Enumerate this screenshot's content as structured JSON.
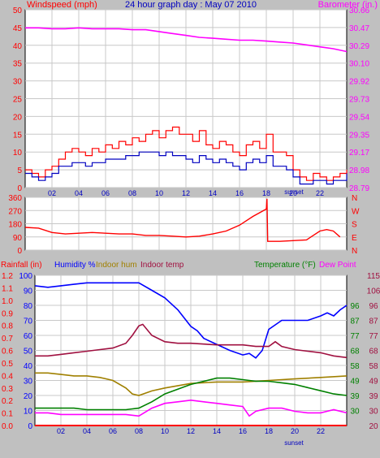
{
  "chart_data": [
    {
      "type": "line",
      "title": "24 hour graph day : May 07 2010",
      "left_axis_label": "Windspeed (mph)",
      "right_axis_label": "Barometer (in.)",
      "x_ticks": [
        "02",
        "04",
        "06",
        "08",
        "10",
        "12",
        "14",
        "16",
        "18",
        "20",
        "22"
      ],
      "x_annotation": "sunset",
      "left_ticks": [
        "0",
        "5",
        "10",
        "15",
        "20",
        "25",
        "30",
        "35",
        "40",
        "45",
        "50"
      ],
      "right_ticks": [
        "28.79",
        "28.98",
        "29.17",
        "29.35",
        "29.54",
        "29.73",
        "29.92",
        "30.10",
        "30.29",
        "30.47",
        "30.66"
      ],
      "ylim": [
        0,
        50
      ],
      "baro_lim": [
        28.79,
        30.66
      ],
      "grid": true,
      "series": [
        {
          "key": "gust",
          "color": "#ff0000",
          "axis": "left",
          "x": [
            0,
            0.5,
            1,
            1.5,
            2,
            2.5,
            3,
            3.5,
            4,
            4.5,
            5,
            5.5,
            6,
            6.5,
            7,
            7.5,
            8,
            8.5,
            9,
            9.5,
            10,
            10.5,
            11,
            11.5,
            12,
            12.5,
            13,
            13.5,
            14,
            14.5,
            15,
            15.5,
            16,
            16.5,
            17,
            17.5,
            18,
            18.5,
            19,
            19.5,
            20,
            20.5,
            21,
            21.5,
            22,
            22.5,
            23,
            23.5,
            24
          ],
          "values": [
            5,
            4,
            3,
            5,
            6,
            8,
            10,
            11,
            10,
            9,
            11,
            10,
            12,
            11,
            13,
            12,
            14,
            13,
            15,
            16,
            14,
            16,
            17,
            15,
            15,
            13,
            16,
            12,
            11,
            13,
            12,
            10,
            9,
            12,
            13,
            11,
            15,
            10,
            10,
            9,
            5,
            3,
            2,
            4,
            3,
            2,
            3,
            4,
            5
          ]
        },
        {
          "key": "wind",
          "color": "#0000c0",
          "axis": "left",
          "x": [
            0,
            0.5,
            1,
            1.5,
            2,
            2.5,
            3,
            3.5,
            4,
            4.5,
            5,
            5.5,
            6,
            6.5,
            7,
            7.5,
            8,
            8.5,
            9,
            9.5,
            10,
            10.5,
            11,
            11.5,
            12,
            12.5,
            13,
            13.5,
            14,
            14.5,
            15,
            15.5,
            16,
            16.5,
            17,
            17.5,
            18,
            18.5,
            19,
            19.5,
            20,
            20.5,
            21,
            21.5,
            22,
            22.5,
            23,
            23.5,
            24
          ],
          "values": [
            4,
            3,
            2,
            3,
            4,
            6,
            6,
            7,
            7,
            6,
            7,
            7,
            8,
            8,
            8,
            9,
            9,
            10,
            10,
            10,
            9,
            10,
            9,
            9,
            8,
            7,
            9,
            8,
            7,
            8,
            7,
            6,
            5,
            7,
            8,
            7,
            9,
            6,
            6,
            5,
            3,
            1,
            1,
            2,
            2,
            1,
            2,
            2,
            4
          ]
        },
        {
          "key": "baro",
          "color": "#ff00ff",
          "axis": "right",
          "x": [
            0,
            1,
            2,
            3,
            4,
            5,
            6,
            7,
            8,
            9,
            10,
            11,
            12,
            13,
            14,
            15,
            16,
            17,
            18,
            19,
            20,
            21,
            22,
            23,
            24
          ],
          "values": [
            30.47,
            30.47,
            30.46,
            30.46,
            30.47,
            30.46,
            30.46,
            30.46,
            30.45,
            30.45,
            30.43,
            30.41,
            30.39,
            30.37,
            30.36,
            30.35,
            30.34,
            30.34,
            30.33,
            30.32,
            30.31,
            30.29,
            30.27,
            30.25,
            30.22
          ]
        }
      ]
    },
    {
      "type": "line",
      "left_ticks": [
        "0",
        "90",
        "180",
        "270",
        "360"
      ],
      "right_ticks": [
        "N",
        "E",
        "S",
        "W",
        "N"
      ],
      "ylim": [
        0,
        360
      ],
      "grid": true,
      "series": [
        {
          "key": "direction",
          "color": "#ff0000",
          "x": [
            0,
            1,
            2,
            3,
            4,
            5,
            6,
            7,
            8,
            9,
            10,
            11,
            12,
            13,
            14,
            15,
            16,
            17,
            18,
            18.05,
            18.1,
            19,
            20,
            21,
            22,
            22.5,
            23,
            23.5
          ],
          "values": [
            155,
            150,
            120,
            110,
            115,
            120,
            115,
            110,
            110,
            100,
            100,
            95,
            90,
            95,
            110,
            130,
            170,
            230,
            280,
            350,
            60,
            60,
            65,
            70,
            130,
            140,
            130,
            90
          ]
        }
      ]
    },
    {
      "type": "line",
      "legend": [
        "Rainfall (in)",
        "Humidity %",
        "Indoor hum",
        "Indoor temp",
        "Temperature (°F)",
        "Dew Point"
      ],
      "x_ticks": [
        "02",
        "04",
        "06",
        "08",
        "10",
        "12",
        "14",
        "16",
        "18",
        "20",
        "22"
      ],
      "x_annotation": "sunset",
      "rain_ticks": [
        "0.0",
        "0.1",
        "0.2",
        "0.3",
        "0.4",
        "0.5",
        "0.6",
        "0.7",
        "0.8",
        "0.9",
        "1.0",
        "1.1",
        "1.2"
      ],
      "hum_ticks": [
        "0",
        "10",
        "20",
        "30",
        "40",
        "50",
        "60",
        "70",
        "80",
        "90",
        "100"
      ],
      "temp_ticks_a": [
        "20",
        "30",
        "39",
        "49",
        "58",
        "68",
        "77",
        "87",
        "96",
        "106",
        "115"
      ],
      "temp_ticks_b": [
        "30",
        "39",
        "49",
        "58",
        "68",
        "77",
        "87",
        "96"
      ],
      "hum_lim": [
        0,
        100
      ],
      "temp_lim": [
        20,
        115
      ],
      "grid": true,
      "series": [
        {
          "key": "rain",
          "color": "#ff0000",
          "axis": "hum",
          "x": [
            0,
            24
          ],
          "values": [
            0,
            0
          ]
        },
        {
          "key": "humidity",
          "color": "#0000ff",
          "axis": "hum",
          "x": [
            0,
            1,
            2,
            3,
            4,
            5,
            6,
            7,
            8,
            9,
            10,
            11,
            12,
            12.5,
            13,
            14,
            15,
            16,
            16.5,
            17,
            17.5,
            18,
            19,
            20,
            21,
            22,
            22.5,
            23,
            23.5,
            24
          ],
          "values": [
            93,
            92,
            93,
            94,
            95,
            95,
            95,
            95,
            95,
            90,
            85,
            77,
            66,
            63,
            58,
            54,
            50,
            47,
            48,
            45,
            50,
            64,
            70,
            70,
            70,
            73,
            75,
            73,
            77,
            80
          ]
        },
        {
          "key": "indoor_hum",
          "color": "#a08000",
          "axis": "hum",
          "x": [
            0,
            1,
            2,
            3,
            4,
            5,
            6,
            7,
            7.5,
            8,
            9,
            10,
            12,
            14,
            16,
            18,
            20,
            22,
            24
          ],
          "values": [
            35,
            35,
            34,
            33,
            33,
            32,
            30,
            25,
            21,
            20,
            23,
            25,
            28,
            29,
            29,
            30,
            31,
            32,
            33
          ]
        },
        {
          "key": "indoor_temp",
          "color": "#a01040",
          "axis": "temp",
          "x": [
            0,
            1,
            2,
            3,
            4,
            5,
            6,
            7,
            7.5,
            8,
            8.3,
            9,
            10,
            11,
            12,
            14,
            16,
            17,
            18,
            18.5,
            19,
            20,
            21,
            22,
            23,
            24
          ],
          "values": [
            64,
            64,
            65,
            66,
            67,
            68,
            69,
            72,
            77,
            83,
            84,
            77,
            73,
            72,
            72,
            71,
            71,
            70,
            70,
            73,
            70,
            68,
            67,
            66,
            64,
            63
          ]
        },
        {
          "key": "temperature",
          "color": "#008000",
          "axis": "temp",
          "x": [
            0,
            1,
            2,
            3,
            4,
            5,
            6,
            7,
            8,
            9,
            10,
            11,
            12,
            13,
            14,
            15,
            16,
            17,
            18,
            19,
            20,
            21,
            22,
            23,
            24
          ],
          "values": [
            31,
            31,
            31,
            31,
            30,
            30,
            30,
            30,
            31,
            35,
            40,
            43,
            46,
            48,
            50,
            50,
            49,
            48,
            48,
            47,
            46,
            44,
            42,
            40,
            39
          ]
        },
        {
          "key": "dew_point",
          "color": "#ff00ff",
          "axis": "temp",
          "x": [
            0,
            1,
            2,
            3,
            4,
            5,
            6,
            7,
            8,
            9,
            10,
            11,
            12,
            13,
            14,
            15,
            16,
            16.5,
            17,
            18,
            19,
            20,
            21,
            22,
            23,
            24
          ],
          "values": [
            28,
            28,
            27,
            27,
            27,
            27,
            27,
            27,
            26,
            31,
            34,
            35,
            36,
            35,
            34,
            33,
            32,
            26,
            29,
            31,
            31,
            29,
            28,
            28,
            30,
            28
          ]
        }
      ]
    }
  ]
}
